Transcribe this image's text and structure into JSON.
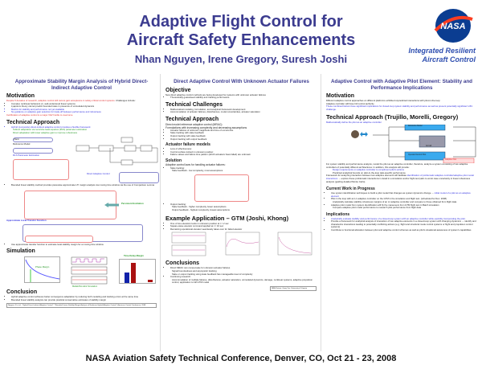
{
  "header": {
    "title_line1": "Adaptive Flight Control for",
    "title_line2": "Aircraft Safety Enhancements",
    "authors": "Nhan Nguyen, Irene Gregory, Suresh Joshi",
    "program_line1": "Integrated Resilient",
    "program_line2": "Aircraft Control",
    "logo_text": "NASA"
  },
  "col1": {
    "title": "Approximate Stability Margin Analysis of Hybrid Direct-Indirect Adaptive Control",
    "motivation_heading": "Motivation",
    "motivation_red": "Despite 5 decades of research, adaptive control still cannot gain acceptance in safety-critical control systems.",
    "motivation_rest": " Challenges include:",
    "bullets": [
      "Complex nonlinear behaviors vs. well-understood linear systems",
      "Lyapunov theory cannot predict bounded rates in presence of unmodeled dynamics",
      "Metrics for stability and performance not yet available",
      "No guidance on adaptive gain selection for trade-off between performance and robustness"
    ],
    "certification": "Certification of adaptive control is a major V&V hurdle to overcome",
    "approach_heading": "Technical Approach",
    "approach_bullet": "Hybrid (composite) direct-indirect adaptive control provides a flexible framework",
    "approach_sub": [
      "Indirect adaptation via recursive least-squares (RLS) parameter estimation",
      "Direct adaptation with lower adaptive gain to improve robustness"
    ],
    "plant_label": "Plant:",
    "reference_label": "Reference Model:",
    "rls_label": "RLS Parameter Estimation",
    "direct_label": "Direct Adaptive Control",
    "bounded_bullet": "Bounded linear stability method provides piecewise approximate LTI margin analysis via moving time window via the use of Comparison Lemma",
    "persistent_label": "Persistent Excitation",
    "transfer_label": "Approximate Local Transfer Function",
    "transfer_bullet": "Use approximate transfer function to estimate local stability margin for a moving time window",
    "simulation_heading": "Simulation",
    "phase_margin": "Phase Margin",
    "time_delay_margin": "Time-Delay Margin",
    "sim_caption": "Matlab/Simulink Simulation",
    "conclusion_heading": "Conclusion",
    "conclusions": [
      "Hybrid adaptive control achieves better convergence adaptation by reducing both modeling and tracking errors at the same time",
      "Bounded linear stability analysis can provide practical conservative estimates of stability margin"
    ],
    "reference": "Nguyen, N. et al., \"Hybrid Direct-Indirect Adaptive Control\" / \"Bounded Linear Stability Margin Analysis of Nonlinear Hybrid Adaptive Control\", American Control Conference, 2008"
  },
  "col2": {
    "title": "Direct Adaptive Control With Unknown Actuator Failures",
    "objective_heading": "Objective",
    "objective_text": "New direct adaptive control methods are being developed for systems with unknown actuator failures",
    "objective_bullets": [
      "Theoretically guaranteed stability and tracking performance"
    ],
    "challenges_heading": "Technical Challenges",
    "challenges": [
      "Mathematical modeling, formulation, and analytical framework development",
      "Accommodation of actuator failures, disturbances, model uncertainties, actuator saturation"
    ],
    "approach_heading": "Technical Approach",
    "approach_text1": "Direct model reference adaptive control (MRAC):",
    "approach_text2": "Formulations with increasing complexity and decreasing assumptions",
    "approach_bullets": [
      "Actuator failures of unknown magnitude and time of occurrence",
      "State tracking with state feedback",
      "Output tracking with state feedback",
      "Output tracking with output feedback"
    ],
    "failure_heading": "Actuator failure models",
    "failure_bullets": [
      "Loss of effectiveness:",
      "Control surface locked in unknown position:",
      "Failure values and failure time pattern (which actuators have failed) are unknown"
    ],
    "solution_heading": "Solution",
    "solution_text": "Adaptive control laws for handling actuator failures:",
    "state_tracking": "State tracking:",
    "state_sub": "State feedback - low complexity, most assumptions",
    "output_tracking": "Output tracking:",
    "output_sub": [
      "State feedback - higher complexity, fewer assumptions",
      "Output feedback - highest complexity, fewest assumptions"
    ],
    "example_heading": "Example Application – GTM (Joshi, Khong)",
    "example_bullets": [
      "One of two elevators locks in unknown position at t = 2 sec",
      "Square-wave elevator command applied at t = 10 sec",
      "Remaining operational elevator seamlessly takes over for failed elevator"
    ],
    "conclusions_heading": "Conclusions",
    "conclusions": [
      "Direct MRAC can compensate for unknown actuator failures"
    ],
    "conclusions_sub": [
      "Signal boundedness and asymptotic tracking",
      "State or output tracking using state feedback has manageable level of complexity"
    ],
    "research_bullet": "Continuing research:",
    "research_sub": "Accommodation of multiple failures, disturbances, actuator saturation, unmodeled dynamics, damage, nonlinear systems, adaptive propulsion control, application to full GTM model",
    "reference": "NRA Partner: Gang Tao, University of Virginia"
  },
  "col3": {
    "title": "Adaptive Control with Adaptive Pilot Element: Stability and Performance Implications",
    "motivation_heading": "Motivation",
    "motivation_text": "Different adaptive control approaches on different platforms exhibited unpredicted interactions with pilot-in-the-loop",
    "motivation_text2": "Adaptive controller will have full control authority",
    "motivation_blue": "These combined factors have significant implications for closed-loop system stability and performance as well as present potentially significant V&V challenge.",
    "approach_heading": "Technical Approach (Trujillo, Morelli, Gregory)",
    "approach_blue": "Mathematically define the pilot as an adaptive controller",
    "diagram": {
      "ref_model": "Reference Model",
      "aircraft": "Aircraft",
      "adaptive": "Operator/Control Pilot",
      "pilot_adapt": "Adaptive Pilot"
    },
    "analysis_text": "For system stability and performance analysis, model the pilot as an adaptive controller, therefore, analyze a system consisting of two adaptive controllers of potentially different architectures. In addition, this analysis will provide:",
    "analysis_bullets": [
      "Design requirements on adaptive controller to compliment pilot's actions",
      "Predicted analytical bounds on pilot-in-the-loop task-specific performance"
    ],
    "framework_text1": "Framework for analyzing interaction between two adaptive elements will facilitate ",
    "framework_blue": "identification of problematic adaptive controller/adaptive pilot model interactions",
    "framework_text2": " → explore these problematic interactions in detail in a simulation and/or flight test (akin to worst case uncertainty in linear robustness analysis (guiding detailed Monte Carlo).",
    "current_heading": "Current Work in Progress",
    "current": [
      {
        "text": "Use system identification techniques to build a pilot model that changes as system dynamics change → ",
        "blue": "initial model of a pilot as an adaptive element"
      },
      {
        "text": "Pilot in the loop with an L1 adaptive controller on the GTM in the simulation and flight test. (scheduled for Dec. 2008)",
        "blue": ""
      },
      {
        "text": "Analytically calculate stability robustness margins of an L1 adaptive controller and compare to those obtained from flight data",
        "blue": ""
      },
      {
        "text": "Adaptive pilot model from system identification will fly the maneuvers from GTM flight test in Batch simulation",
        "blue": ""
      },
      {
        "text": "Compare adaptive pilot model performance to research pilot performance from flight data",
        "blue": ""
      }
    ],
    "implications_heading": "Implications",
    "implications": [
      {
        "text": "",
        "blue": "Analytically evaluate stability and performance of a closed-loop system with an adaptive controller while explicitly incorporating the pilot."
      },
      {
        "text": "Provide a framework for analytical analysis of interaction of two adaptive elements in a closed-loop system with changing dynamics → identify and characterize interactions leading to potentially conflicting actions (e.g. flight and structural mode control systems or flight and propulsion control systems)",
        "blue": ""
      },
      {
        "text": "Contribute to functional allocation between pilot and adaptive control schemes as well as pilot's situational awareness of system's capabilities",
        "blue": ""
      }
    ]
  },
  "footer": "NASA Aviation Safety Technical Conference, Denver, CO, Oct 21 - 23, 2008",
  "colors": {
    "title": "#3b3b8f",
    "highlight_red": "#e03030",
    "highlight_blue": "#3030e0",
    "highlight_green": "#2a9a2a"
  }
}
